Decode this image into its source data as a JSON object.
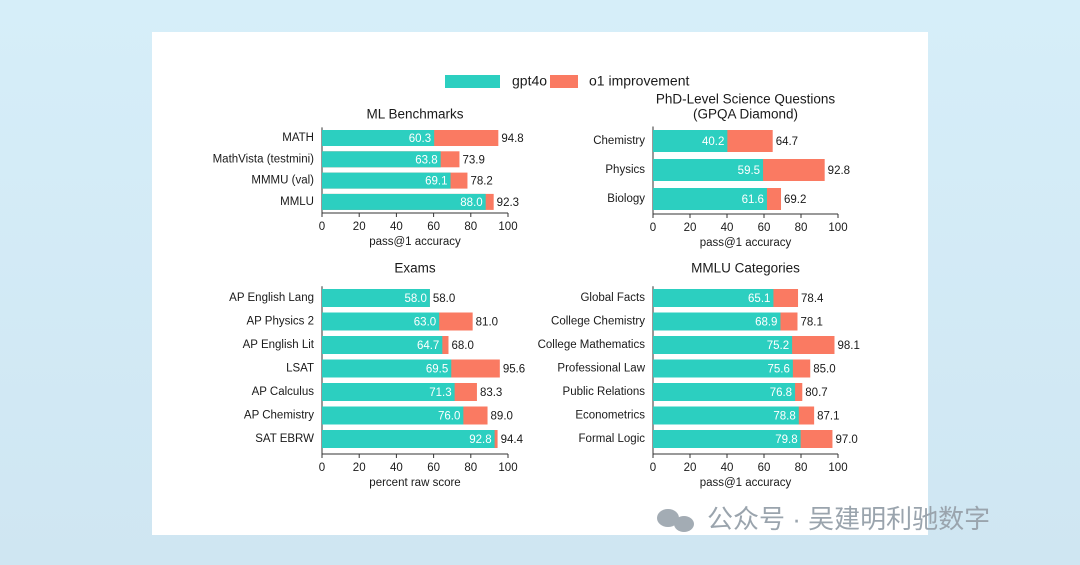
{
  "chart_data": [
    {
      "type": "bar",
      "title": "ML Benchmarks",
      "categories": [
        "MATH",
        "MathVista (testmini)",
        "MMMU (val)",
        "MMLU"
      ],
      "series": [
        {
          "name": "gpt4o",
          "color": "#2ccfc0",
          "values": [
            60.3,
            63.8,
            69.1,
            88.0
          ],
          "value_labels": [
            "60.3",
            "63.8",
            "69.1",
            "88.0"
          ]
        },
        {
          "name": "o1 improvement",
          "color": "#fa7a62",
          "values": [
            94.8,
            73.9,
            78.2,
            92.3
          ],
          "value_labels": [
            "94.8",
            "73.9",
            "78.2",
            "92.3"
          ]
        }
      ],
      "xlabel": "pass@1 accuracy",
      "xlim": [
        0,
        100
      ],
      "xticks": [
        0,
        20,
        40,
        60,
        80,
        100
      ]
    },
    {
      "type": "bar",
      "title": [
        "PhD-Level Science Questions",
        "(GPQA Diamond)"
      ],
      "categories": [
        "Chemistry",
        "Physics",
        "Biology"
      ],
      "series": [
        {
          "name": "gpt4o",
          "color": "#2ccfc0",
          "values": [
            40.2,
            59.5,
            61.6
          ],
          "value_labels": [
            "40.2",
            "59.5",
            "61.6"
          ]
        },
        {
          "name": "o1 improvement",
          "color": "#fa7a62",
          "values": [
            64.7,
            92.8,
            69.2
          ],
          "value_labels": [
            "64.7",
            "92.8",
            "69.2"
          ]
        }
      ],
      "xlabel": "pass@1 accuracy",
      "xlim": [
        0,
        100
      ],
      "xticks": [
        0,
        20,
        40,
        60,
        80,
        100
      ]
    },
    {
      "type": "bar",
      "title": "Exams",
      "categories": [
        "AP English Lang",
        "AP Physics 2",
        "AP English Lit",
        "LSAT",
        "AP Calculus",
        "AP Chemistry",
        "SAT EBRW"
      ],
      "series": [
        {
          "name": "gpt4o",
          "color": "#2ccfc0",
          "values": [
            58.0,
            63.0,
            64.7,
            69.5,
            71.3,
            76.0,
            92.8
          ],
          "value_labels": [
            "58.0",
            "63.0",
            "64.7",
            "69.5",
            "71.3",
            "76.0",
            "92.8"
          ]
        },
        {
          "name": "o1 improvement",
          "color": "#fa7a62",
          "values": [
            58.0,
            81.0,
            68.0,
            95.6,
            83.3,
            89.0,
            94.4
          ],
          "value_labels": [
            "58.0",
            "81.0",
            "68.0",
            "95.6",
            "83.3",
            "89.0",
            "94.4"
          ]
        }
      ],
      "xlabel": "percent raw score",
      "xlim": [
        0,
        100
      ],
      "xticks": [
        0,
        20,
        40,
        60,
        80,
        100
      ]
    },
    {
      "type": "bar",
      "title": "MMLU Categories",
      "categories": [
        "Global Facts",
        "College Chemistry",
        "College Mathematics",
        "Professional Law",
        "Public Relations",
        "Econometrics",
        "Formal Logic"
      ],
      "series": [
        {
          "name": "gpt4o",
          "color": "#2ccfc0",
          "values": [
            65.1,
            68.9,
            75.2,
            75.6,
            76.8,
            78.8,
            79.8
          ],
          "value_labels": [
            "65.1",
            "68.9",
            "75.2",
            "75.6",
            "76.8",
            "78.8",
            "79.8"
          ]
        },
        {
          "name": "o1 improvement",
          "color": "#fa7a62",
          "values": [
            78.4,
            78.1,
            98.1,
            85.0,
            80.7,
            87.1,
            97.0
          ],
          "value_labels": [
            "78.4",
            "78.1",
            "98.1",
            "85.0",
            "80.7",
            "87.1",
            "97.0"
          ]
        }
      ],
      "xlabel": "pass@1 accuracy",
      "xlim": [
        0,
        100
      ],
      "xticks": [
        0,
        20,
        40,
        60,
        80,
        100
      ]
    }
  ],
  "watermark": "公众号 · 吴建明利驰数字"
}
